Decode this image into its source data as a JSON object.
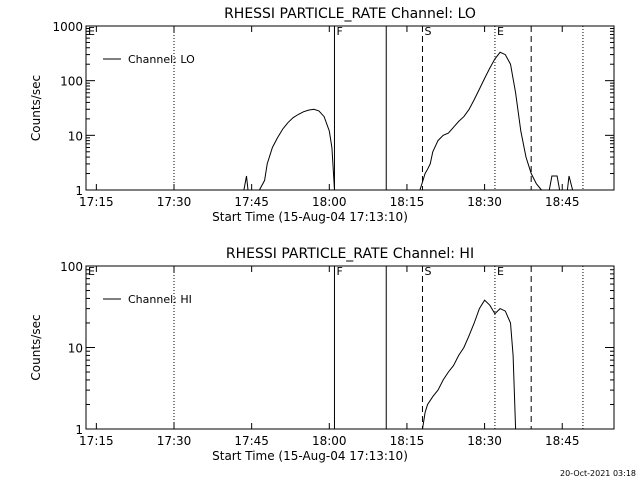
{
  "footer": {
    "timestamp": "20-Oct-2021 03:18"
  },
  "chart_data": [
    {
      "type": "line",
      "title": "RHESSI PARTICLE_RATE Channel: LO",
      "xlabel": "Start Time (15-Aug-04 17:13:10)",
      "ylabel": "Counts/sec",
      "yscale": "log",
      "xlim": [
        "17:13",
        "18:55"
      ],
      "ylim": [
        1,
        1000
      ],
      "x_ticks": [
        "17:15",
        "17:30",
        "17:45",
        "18:00",
        "18:15",
        "18:30",
        "18:45"
      ],
      "y_ticks": [
        {
          "value": 1,
          "label": "1"
        },
        {
          "value": 10,
          "label": "10"
        },
        {
          "value": 100,
          "label": "100"
        },
        {
          "value": 1000,
          "label": "1000"
        }
      ],
      "legend": {
        "label": "Channel: LO",
        "position": "top-left"
      },
      "markers": [
        {
          "time": "17:13",
          "label": "E",
          "style": "dotted"
        },
        {
          "time": "17:30",
          "label": "",
          "style": "dotted"
        },
        {
          "time": "18:01",
          "label": "F",
          "style": "solid"
        },
        {
          "time": "18:11",
          "label": "",
          "style": "solid"
        },
        {
          "time": "18:18",
          "label": "S",
          "style": "dashed"
        },
        {
          "time": "18:32",
          "label": "E",
          "style": "dotted"
        },
        {
          "time": "18:39",
          "label": "",
          "style": "dashed"
        },
        {
          "time": "18:49",
          "label": "",
          "style": "dotted"
        }
      ],
      "series": [
        {
          "segments": [
            [
              [
                "17:43.5",
                1
              ],
              [
                "17:44",
                1.8
              ],
              [
                "17:44.3",
                1
              ]
            ],
            [
              [
                "17:46.5",
                1
              ],
              [
                "17:47.5",
                1.5
              ],
              [
                "17:48",
                3
              ],
              [
                "17:49",
                6
              ],
              [
                "17:50",
                9
              ],
              [
                "17:51",
                13
              ],
              [
                "17:52",
                17
              ],
              [
                "17:53",
                21
              ],
              [
                "17:54",
                24
              ],
              [
                "17:55",
                27
              ],
              [
                "17:56",
                29
              ],
              [
                "17:57",
                30
              ],
              [
                "17:58",
                28
              ],
              [
                "17:59",
                22
              ],
              [
                "18:00",
                12
              ],
              [
                "18:00.5",
                6
              ],
              [
                "18:01",
                1
              ]
            ],
            [
              [
                "18:17.5",
                1
              ],
              [
                "18:18",
                1.4
              ],
              [
                "18:18.5",
                2
              ],
              [
                "18:19",
                2.4
              ],
              [
                "18:19.5",
                3
              ],
              [
                "18:20",
                5
              ],
              [
                "18:21",
                8
              ],
              [
                "18:22",
                10
              ],
              [
                "18:23",
                11
              ],
              [
                "18:24",
                14
              ],
              [
                "18:25",
                18
              ],
              [
                "18:26",
                22
              ],
              [
                "18:27",
                30
              ],
              [
                "18:28",
                45
              ],
              [
                "18:29",
                70
              ],
              [
                "18:30",
                110
              ],
              [
                "18:31",
                170
              ],
              [
                "18:32",
                250
              ],
              [
                "18:33",
                330
              ],
              [
                "18:34",
                300
              ],
              [
                "18:35",
                200
              ],
              [
                "18:36",
                60
              ],
              [
                "18:37",
                12
              ],
              [
                "18:38",
                4
              ],
              [
                "18:39",
                2
              ],
              [
                "18:40",
                1.3
              ],
              [
                "18:41",
                1
              ]
            ],
            [
              [
                "18:42.5",
                1
              ],
              [
                "18:43",
                1.8
              ],
              [
                "18:44",
                1.8
              ],
              [
                "18:44.5",
                1
              ]
            ],
            [
              [
                "18:46",
                1
              ],
              [
                "18:46.3",
                1.8
              ],
              [
                "18:47",
                1
              ]
            ]
          ]
        }
      ]
    },
    {
      "type": "line",
      "title": "RHESSI PARTICLE_RATE Channel: HI",
      "xlabel": "Start Time (15-Aug-04 17:13:10)",
      "ylabel": "Counts/sec",
      "yscale": "log",
      "xlim": [
        "17:13",
        "18:55"
      ],
      "ylim": [
        1,
        100
      ],
      "x_ticks": [
        "17:15",
        "17:30",
        "17:45",
        "18:00",
        "18:15",
        "18:30",
        "18:45"
      ],
      "y_ticks": [
        {
          "value": 1,
          "label": "1"
        },
        {
          "value": 10,
          "label": "10"
        },
        {
          "value": 100,
          "label": "100"
        }
      ],
      "legend": {
        "label": "Channel: HI",
        "position": "top-left"
      },
      "markers": [
        {
          "time": "17:13",
          "label": "E",
          "style": "dotted"
        },
        {
          "time": "17:30",
          "label": "",
          "style": "dotted"
        },
        {
          "time": "18:01",
          "label": "F",
          "style": "solid"
        },
        {
          "time": "18:11",
          "label": "",
          "style": "solid"
        },
        {
          "time": "18:18",
          "label": "S",
          "style": "dashed"
        },
        {
          "time": "18:32",
          "label": "E",
          "style": "dotted"
        },
        {
          "time": "18:39",
          "label": "",
          "style": "dashed"
        },
        {
          "time": "18:49",
          "label": "",
          "style": "dotted"
        }
      ],
      "series": [
        {
          "segments": [
            [
              [
                "18:18",
                1
              ],
              [
                "18:18.5",
                1.6
              ],
              [
                "18:19",
                2
              ],
              [
                "18:20",
                2.5
              ],
              [
                "18:21",
                3
              ],
              [
                "18:22",
                4
              ],
              [
                "18:23",
                5
              ],
              [
                "18:24",
                6
              ],
              [
                "18:25",
                8
              ],
              [
                "18:26",
                10
              ],
              [
                "18:27",
                14
              ],
              [
                "18:28",
                20
              ],
              [
                "18:29",
                30
              ],
              [
                "18:30",
                38
              ],
              [
                "18:31",
                33
              ],
              [
                "18:32",
                26
              ],
              [
                "18:33",
                30
              ],
              [
                "18:34",
                28
              ],
              [
                "18:35",
                20
              ],
              [
                "18:35.5",
                8
              ],
              [
                "18:36",
                1
              ]
            ]
          ]
        }
      ]
    }
  ]
}
